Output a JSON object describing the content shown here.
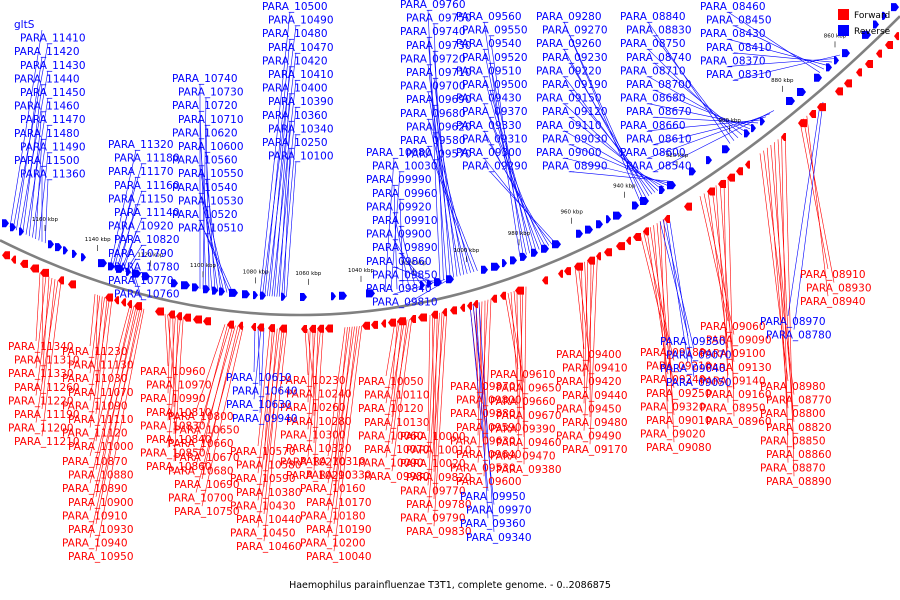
{
  "legend": {
    "forward": {
      "label": "Forward",
      "color": "#ff0000"
    },
    "reverse": {
      "label": "Reverse",
      "color": "#0000ff"
    }
  },
  "caption": "Haemophilus parainfluenzae T3T1, complete genome. - 0..2086875",
  "axis": {
    "backbone_color": "#808080",
    "range_kbp": [
      860,
      1160
    ],
    "ticks": [
      "860 kbp",
      "880 kbp",
      "900 kbp",
      "920 kbp",
      "940 kbp",
      "960 kbp",
      "980 kbp",
      "1000 kbp",
      "1020 kbp",
      "1040 kbp",
      "1060 kbp",
      "1080 kbp",
      "1100 kbp",
      "1120 kbp",
      "1140 kbp",
      "1160 kbp"
    ]
  },
  "reverse_genes": [
    "gltS",
    "PARA_11410",
    "PARA_11420",
    "PARA_11430",
    "PARA_11440",
    "PARA_11450",
    "PARA_11460",
    "PARA_11470",
    "PARA_11480",
    "PARA_11490",
    "PARA_11500",
    "PARA_11360",
    "PARA_11320",
    "PARA_11180",
    "PARA_11170",
    "PARA_11160",
    "PARA_11150",
    "PARA_11140",
    "PARA_10920",
    "PARA_10820",
    "PARA_10790",
    "PARA_10780",
    "PARA_10770",
    "PARA_10760",
    "PARA_10740",
    "PARA_10730",
    "PARA_10720",
    "PARA_10710",
    "PARA_10620",
    "PARA_10600",
    "PARA_10560",
    "PARA_10550",
    "PARA_10540",
    "PARA_10530",
    "PARA_10520",
    "PARA_10510",
    "PARA_10500",
    "PARA_10490",
    "PARA_10480",
    "PARA_10470",
    "PARA_10420",
    "PARA_10410",
    "PARA_10400",
    "PARA_10390",
    "PARA_10360",
    "PARA_10340",
    "PARA_10250",
    "PARA_10100",
    "PARA_10080",
    "PARA_10030",
    "PARA_09990",
    "PARA_09960",
    "PARA_09920",
    "PARA_09910",
    "PARA_09900",
    "PARA_09890",
    "PARA_09860",
    "PARA_09850",
    "PARA_09840",
    "PARA_09810",
    "PARA_09760",
    "PARA_09750",
    "PARA_09740",
    "PARA_09730",
    "PARA_09720",
    "PARA_09710",
    "PARA_09700",
    "PARA_09690",
    "PARA_09680",
    "PARA_09620",
    "PARA_09580",
    "PARA_09570",
    "PARA_09560",
    "PARA_09550",
    "PARA_09540",
    "PARA_09520",
    "PARA_09510",
    "PARA_09500",
    "PARA_09430",
    "PARA_09370",
    "PARA_09330",
    "PARA_09310",
    "PARA_09300",
    "PARA_09290",
    "PARA_09280",
    "PARA_09270",
    "PARA_09260",
    "PARA_09230",
    "PARA_09220",
    "PARA_09190",
    "PARA_09150",
    "PARA_09120",
    "PARA_09110",
    "PARA_09030",
    "PARA_09000",
    "PARA_08990",
    "PARA_08840",
    "PARA_08830",
    "PARA_08750",
    "PARA_08740",
    "PARA_08710",
    "PARA_08700",
    "PARA_08680",
    "PARA_08670",
    "PARA_08660",
    "PARA_08610",
    "PARA_08600",
    "PARA_08540",
    "PARA_08460",
    "PARA_08450",
    "PARA_08430",
    "PARA_08410",
    "PARA_08370",
    "PARA_08310"
  ],
  "forward_genes": [
    "PARA_11340",
    "PARA_11310",
    "PARA_11330",
    "PARA_11260",
    "PARA_11220",
    "PARA_11190",
    "PARA_11200",
    "PARA_11210",
    "PARA_11230",
    "PARA_11130",
    "PARA_11030",
    "PARA_11070",
    "PARA_11090",
    "PARA_11110",
    "PARA_11120",
    "PARA_11000",
    "PARA_10870",
    "PARA_10880",
    "PARA_10890",
    "PARA_10900",
    "PARA_10910",
    "PARA_10930",
    "PARA_10940",
    "PARA_10950",
    "PARA_10960",
    "PARA_10970",
    "PARA_10990",
    "PARA_10810",
    "PARA_10830",
    "PARA_10840",
    "PARA_10850",
    "PARA_10860",
    "PARA_10800",
    "PARA_10650",
    "PARA_10660",
    "PARA_10670",
    "PARA_10680",
    "PARA_10690",
    "PARA_10700",
    "PARA_10750",
    "PARA_10570",
    "PARA_10580",
    "PARA_10590",
    "PARA_10380",
    "PARA_10430",
    "PARA_10440",
    "PARA_10450",
    "PARA_10460",
    "PARA_10230",
    "PARA_10240",
    "PARA_10260",
    "PARA_10280",
    "PARA_10300",
    "PARA_10320",
    "PARA_10270",
    "PARA_10290",
    "PARA_10310",
    "PARA_10330",
    "PARA_10160",
    "PARA_10170",
    "PARA_10180",
    "PARA_10190",
    "PARA_10200",
    "PARA_10040",
    "PARA_10050",
    "PARA_10110",
    "PARA_10120",
    "PARA_10130",
    "PARA_10060",
    "PARA_10070",
    "PARA_10090",
    "PARA_09980",
    "PARA_10000",
    "PARA_10010",
    "PARA_10020",
    "PARA_09820",
    "PARA_09770",
    "PARA_09780",
    "PARA_09790",
    "PARA_09830",
    "PARA_09870",
    "PARA_09800",
    "PARA_09880",
    "PARA_09590",
    "PARA_09630",
    "PARA_09640",
    "PARA_09530",
    "PARA_09600",
    "PARA_09610",
    "PARA_09650",
    "PARA_09660",
    "PARA_09670",
    "PARA_09390",
    "PARA_09460",
    "PARA_09470",
    "PARA_09380",
    "PARA_09400",
    "PARA_09410",
    "PARA_09420",
    "PARA_09440",
    "PARA_09450",
    "PARA_09480",
    "PARA_09490",
    "PARA_09170",
    "PARA_09180",
    "PARA_09210",
    "PARA_09240",
    "PARA_09250",
    "PARA_09320",
    "PARA_09010",
    "PARA_09020",
    "PARA_09080",
    "PARA_09060",
    "PARA_09090",
    "PARA_09100",
    "PARA_09130",
    "PARA_09140",
    "PARA_09160",
    "PARA_08950",
    "PARA_08960",
    "PARA_08980",
    "PARA_08770",
    "PARA_08800",
    "PARA_08820",
    "PARA_08850",
    "PARA_08860",
    "PARA_08870",
    "PARA_08890",
    "PARA_08910",
    "PARA_08930",
    "PARA_08940"
  ],
  "reverse_genes_lower": [
    "PARA_10610",
    "PARA_10640",
    "PARA_10630",
    "PARA_09940",
    "PARA_09950",
    "PARA_09970",
    "PARA_09360",
    "PARA_09340",
    "PARA_09350",
    "PARA_09070",
    "PARA_09040",
    "PARA_09050",
    "PARA_08970",
    "PARA_08780"
  ]
}
